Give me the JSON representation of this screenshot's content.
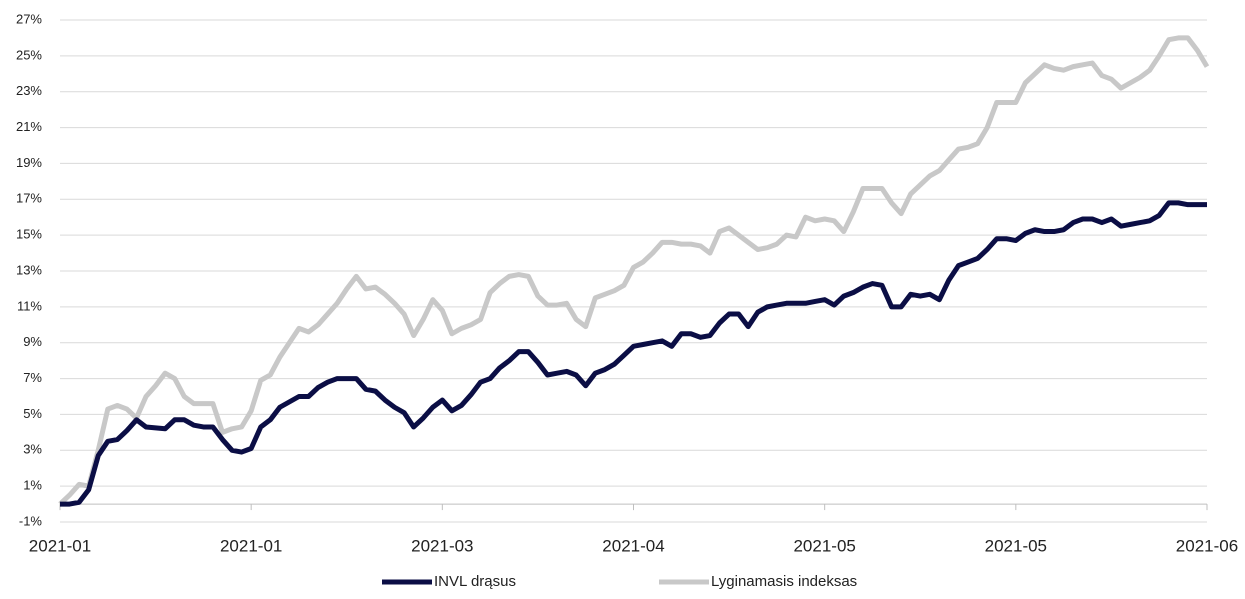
{
  "chart_data": {
    "type": "line",
    "categories": [
      "2021-01",
      null,
      null,
      null,
      null,
      null,
      null,
      null,
      null,
      null,
      null,
      null,
      null,
      null,
      null,
      null,
      null,
      null,
      null,
      null,
      "2021-01",
      null,
      null,
      null,
      null,
      null,
      null,
      null,
      null,
      null,
      null,
      null,
      null,
      null,
      null,
      null,
      null,
      null,
      null,
      null,
      "2021-03",
      null,
      null,
      null,
      null,
      null,
      null,
      null,
      null,
      null,
      null,
      null,
      null,
      null,
      null,
      null,
      null,
      null,
      null,
      null,
      "2021-04",
      null,
      null,
      null,
      null,
      null,
      null,
      null,
      null,
      null,
      null,
      null,
      null,
      null,
      null,
      null,
      null,
      null,
      null,
      null,
      "2021-05",
      null,
      null,
      null,
      null,
      null,
      null,
      null,
      null,
      null,
      null,
      null,
      null,
      null,
      null,
      null,
      null,
      null,
      null,
      null,
      "2021-05",
      null,
      null,
      null,
      null,
      null,
      null,
      null,
      null,
      null,
      null,
      null,
      null,
      null,
      null,
      null,
      null,
      null,
      null,
      null,
      "2021-06"
    ],
    "series": [
      {
        "name": "INVL drąsus",
        "color": "#0b0e45",
        "values": [
          0,
          0.0,
          0.1,
          0.8,
          2.7,
          3.5,
          3.6,
          4.1,
          4.7,
          4.3,
          4.25,
          4.2,
          4.7,
          4.7,
          4.4,
          4.3,
          4.3,
          3.6,
          3.0,
          2.9,
          3.1,
          4.3,
          4.7,
          5.4,
          5.7,
          6.0,
          6.0,
          6.5,
          6.8,
          7.0,
          7.0,
          7.0,
          6.4,
          6.3,
          5.8,
          5.4,
          5.1,
          4.3,
          4.8,
          5.4,
          5.8,
          5.2,
          5.5,
          6.1,
          6.8,
          7.0,
          7.6,
          8.0,
          8.5,
          8.5,
          7.9,
          7.2,
          7.3,
          7.4,
          7.2,
          6.6,
          7.3,
          7.5,
          7.8,
          8.3,
          8.8,
          8.9,
          9.0,
          9.1,
          8.8,
          9.5,
          9.5,
          9.3,
          9.4,
          10.1,
          10.6,
          10.6,
          9.9,
          10.7,
          11.0,
          11.1,
          11.2,
          11.2,
          11.2,
          11.3,
          11.4,
          11.1,
          11.6,
          11.8,
          12.1,
          12.3,
          12.2,
          11.0,
          11.0,
          11.7,
          11.6,
          11.7,
          11.4,
          12.5,
          13.3,
          13.5,
          13.7,
          14.2,
          14.8,
          14.8,
          14.7,
          15.1,
          15.3,
          15.2,
          15.2,
          15.3,
          15.7,
          15.9,
          15.9,
          15.7,
          15.9,
          15.5,
          15.6,
          15.7,
          15.8,
          16.1,
          16.8,
          16.8,
          16.7,
          16.7,
          16.7
        ]
      },
      {
        "name": "Lyginamasis indeksas",
        "color": "#c8c8c8",
        "values": [
          0,
          0.5,
          1.1,
          1.0,
          3.0,
          5.3,
          5.5,
          5.3,
          4.8,
          6.0,
          6.6,
          7.3,
          7.0,
          6.0,
          5.6,
          5.6,
          5.6,
          4.0,
          4.2,
          4.3,
          5.2,
          6.9,
          7.2,
          8.2,
          9.0,
          9.8,
          9.6,
          10.0,
          10.6,
          11.2,
          12.0,
          12.7,
          12.0,
          12.1,
          11.7,
          11.2,
          10.6,
          9.4,
          10.3,
          11.4,
          10.8,
          9.5,
          9.8,
          10.0,
          10.3,
          11.8,
          12.3,
          12.7,
          12.8,
          12.7,
          11.6,
          11.1,
          11.1,
          11.2,
          10.3,
          9.9,
          11.5,
          11.7,
          11.9,
          12.2,
          13.2,
          13.5,
          14.0,
          14.6,
          14.6,
          14.5,
          14.5,
          14.4,
          14.0,
          15.2,
          15.4,
          15.0,
          14.6,
          14.2,
          14.3,
          14.5,
          15.0,
          14.9,
          16.0,
          15.8,
          15.9,
          15.8,
          15.2,
          16.3,
          17.6,
          17.6,
          17.6,
          16.8,
          16.2,
          17.3,
          17.8,
          18.3,
          18.6,
          19.2,
          19.8,
          19.9,
          20.1,
          21.0,
          22.4,
          22.4,
          22.4,
          23.5,
          24.0,
          24.5,
          24.3,
          24.2,
          24.4,
          24.5,
          24.6,
          23.9,
          23.7,
          23.2,
          23.5,
          23.8,
          24.2,
          25.0,
          25.9,
          26.0,
          26.0,
          25.3,
          24.4
        ]
      }
    ],
    "ylim": [
      -1,
      27
    ],
    "yticks": [
      {
        "value": -1,
        "label": "-1%"
      },
      {
        "value": 1,
        "label": "1%"
      },
      {
        "value": 3,
        "label": "3%"
      },
      {
        "value": 5,
        "label": "5%"
      },
      {
        "value": 7,
        "label": "7%"
      },
      {
        "value": 9,
        "label": "9%"
      },
      {
        "value": 11,
        "label": "11%"
      },
      {
        "value": 13,
        "label": "13%"
      },
      {
        "value": 15,
        "label": "15%"
      },
      {
        "value": 17,
        "label": "17%"
      },
      {
        "value": 19,
        "label": "19%"
      },
      {
        "value": 21,
        "label": "21%"
      },
      {
        "value": 23,
        "label": "23%"
      },
      {
        "value": 25,
        "label": "25%"
      },
      {
        "value": 27,
        "label": "27%"
      }
    ],
    "grid": true,
    "legend": "bottom"
  }
}
